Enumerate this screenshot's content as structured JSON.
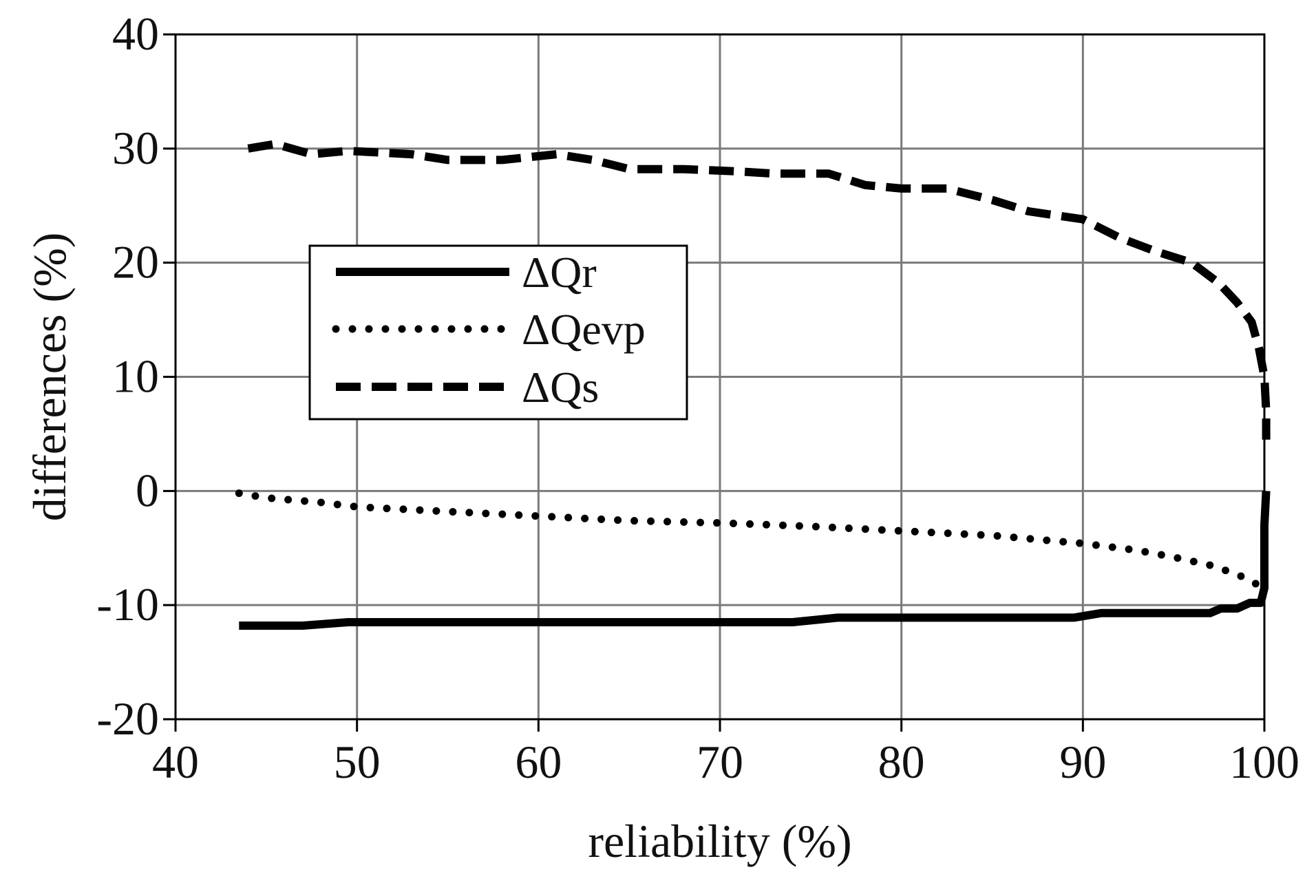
{
  "chart_data": {
    "type": "line",
    "title": "",
    "xlabel": "reliability (%)",
    "ylabel": "differences (%)",
    "xlim": [
      40,
      100
    ],
    "ylim": [
      -20,
      40
    ],
    "xticks": [
      40,
      50,
      60,
      70,
      80,
      90,
      100
    ],
    "yticks": [
      -20,
      -10,
      0,
      10,
      20,
      30,
      40
    ],
    "grid": true,
    "legend_position": "center-left",
    "series": [
      {
        "name": "ΔQr",
        "style": "solid",
        "x": [
          43.5,
          47,
          49.5,
          55,
          60,
          65,
          70,
          74,
          76.5,
          80,
          85,
          89.5,
          91,
          95,
          97,
          97.6,
          98.5,
          99.2,
          99.8,
          100,
          100,
          100.1
        ],
        "y": [
          -11.8,
          -11.8,
          -11.5,
          -11.5,
          -11.5,
          -11.5,
          -11.5,
          -11.5,
          -11.1,
          -11.1,
          -11.1,
          -11.1,
          -10.7,
          -10.7,
          -10.7,
          -10.3,
          -10.3,
          -9.8,
          -9.8,
          -8.5,
          -3,
          0
        ]
      },
      {
        "name": "ΔQevp",
        "style": "dotted",
        "x": [
          43.5,
          45,
          48,
          50,
          55,
          60,
          65,
          70,
          75,
          80,
          85,
          90,
          93,
          95,
          97,
          98.5,
          99.5,
          100
        ],
        "y": [
          -0.2,
          -0.6,
          -1.0,
          -1.4,
          -1.8,
          -2.2,
          -2.6,
          -2.8,
          -3.1,
          -3.5,
          -3.9,
          -4.6,
          -5.2,
          -5.8,
          -6.5,
          -7.3,
          -8.1,
          -8.5
        ]
      },
      {
        "name": "ΔQs",
        "style": "dashed",
        "x": [
          44,
          45.5,
          47.5,
          49.5,
          53,
          55,
          58,
          61,
          63,
          65,
          68,
          71,
          73,
          76,
          78,
          80,
          82.5,
          85,
          87,
          90,
          92,
          94,
          96,
          97.5,
          98.5,
          99.3,
          99.7,
          100,
          100.1,
          100.1
        ],
        "y": [
          30,
          30.4,
          29.5,
          29.8,
          29.5,
          29,
          29,
          29.5,
          29,
          28.2,
          28.2,
          28,
          27.8,
          27.8,
          26.8,
          26.5,
          26.5,
          25.5,
          24.5,
          23.8,
          22.2,
          21,
          20,
          18.2,
          16.5,
          14.8,
          12.5,
          10,
          7,
          4.5
        ]
      }
    ]
  }
}
